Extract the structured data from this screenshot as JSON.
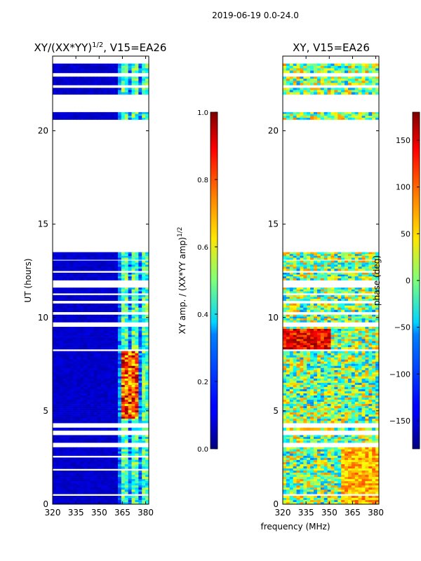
{
  "figure_title": "2019-06-19 0.0-24.0",
  "xlabel_shared": "frequency (MHz)",
  "chart_data": [
    {
      "type": "heatmap",
      "title_prefix": "XY/(XX*YY)",
      "title_exp": "1/2",
      "title_suffix": ", V15=EA26",
      "ylabel": "UT (hours)",
      "xlim": [
        320,
        382
      ],
      "ylim": [
        0,
        24
      ],
      "xticks": [
        320,
        335,
        350,
        365,
        380
      ],
      "yticks": [
        0,
        5,
        10,
        15,
        20
      ],
      "colorbar": {
        "label_prefix": "XY amp. / (XX*YY amp)",
        "label_exp": "1/2",
        "range": [
          0.0,
          1.0
        ],
        "ticks": [
          0.0,
          0.2,
          0.4,
          0.6,
          0.8,
          1.0
        ],
        "tick_labels": [
          "0.0",
          "0.2",
          "0.4",
          "0.6",
          "0.8",
          "1.0"
        ]
      },
      "data_bands_hours": [
        [
          0.0,
          0.45
        ],
        [
          0.55,
          1.8
        ],
        [
          1.9,
          2.5
        ],
        [
          2.6,
          3.05
        ],
        [
          3.3,
          3.7
        ],
        [
          3.95,
          4.1
        ],
        [
          4.35,
          8.2
        ],
        [
          8.3,
          9.5
        ],
        [
          9.75,
          10.15
        ],
        [
          10.3,
          10.75
        ],
        [
          10.9,
          11.2
        ],
        [
          11.3,
          11.6
        ],
        [
          12.0,
          12.4
        ],
        [
          12.5,
          13.05
        ],
        [
          13.1,
          13.5
        ],
        [
          20.6,
          21.0
        ],
        [
          21.95,
          22.3
        ],
        [
          22.45,
          22.9
        ],
        [
          23.1,
          23.6
        ]
      ],
      "high_amp_hours": [
        4.3,
        8.0
      ],
      "high_amp_channels_MHz": [
        364,
        376
      ],
      "colormap": "jet"
    },
    {
      "type": "heatmap",
      "title": "XY, V15=EA26",
      "xlim": [
        320,
        382
      ],
      "ylim": [
        0,
        24
      ],
      "xticks": [
        320,
        335,
        350,
        365,
        380
      ],
      "yticks": [
        0,
        5,
        10,
        15,
        20
      ],
      "colorbar": {
        "label": "phase (deg)",
        "range": [
          -180,
          180
        ],
        "ticks": [
          -150,
          -100,
          -50,
          0,
          50,
          100,
          150
        ],
        "tick_labels": [
          "−150",
          "−100",
          "−50",
          "0",
          "50",
          "100",
          "150"
        ]
      },
      "data_bands_hours": [
        [
          0.0,
          0.45
        ],
        [
          0.55,
          3.05
        ],
        [
          3.3,
          3.7
        ],
        [
          3.95,
          4.1
        ],
        [
          4.35,
          8.2
        ],
        [
          8.3,
          9.5
        ],
        [
          9.75,
          10.15
        ],
        [
          10.3,
          10.75
        ],
        [
          10.9,
          11.2
        ],
        [
          11.3,
          11.6
        ],
        [
          12.0,
          12.4
        ],
        [
          12.5,
          13.05
        ],
        [
          13.1,
          13.5
        ],
        [
          20.6,
          21.0
        ],
        [
          21.95,
          22.3
        ],
        [
          22.45,
          22.9
        ],
        [
          23.1,
          23.6
        ]
      ],
      "colormap": "jet"
    }
  ]
}
